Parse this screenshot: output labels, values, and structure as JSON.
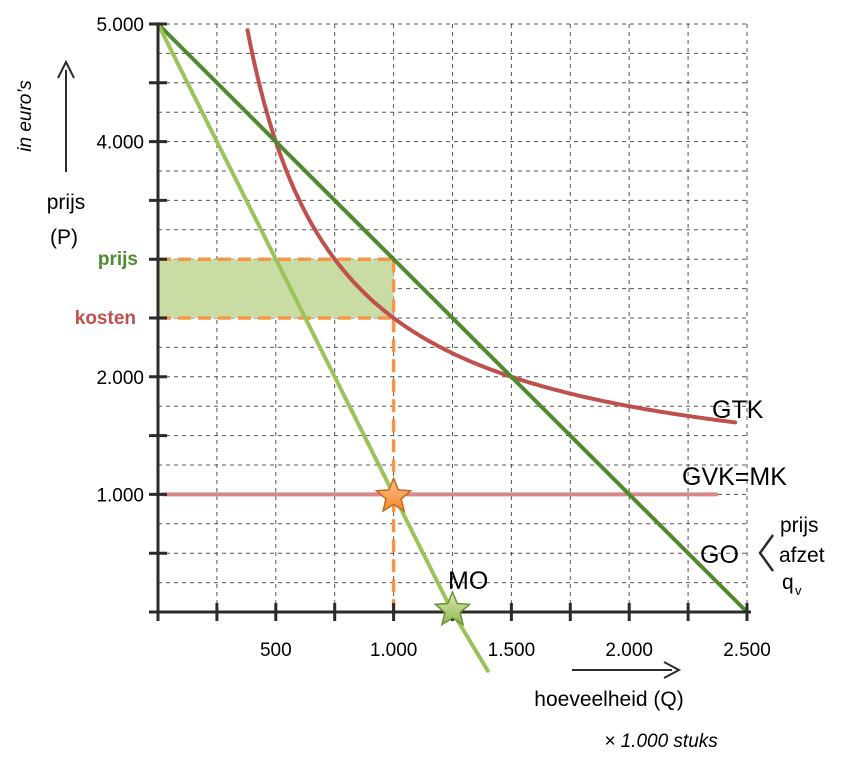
{
  "chart_data": {
    "type": "line",
    "x_ticks": [
      {
        "value": 500,
        "label": "500"
      },
      {
        "value": 1000,
        "label": "1.000"
      },
      {
        "value": 1500,
        "label": "1.500"
      },
      {
        "value": 2000,
        "label": "2.000"
      },
      {
        "value": 2500,
        "label": "2.500"
      }
    ],
    "y_ticks": [
      {
        "value": 1000,
        "label": "1.000"
      },
      {
        "value": 2000,
        "label": "2.000"
      },
      {
        "value": 4000,
        "label": "4.000"
      },
      {
        "value": 5000,
        "label": "5.000"
      }
    ],
    "xlim": [
      0,
      2500
    ],
    "ylim": [
      0,
      5000
    ],
    "grid": true,
    "xlabel": "hoeveelheid (Q)",
    "xunit": "× 1.000 stuks",
    "ylabel_line1": "prijs",
    "ylabel_line2": "(P)",
    "yunit": "in euro’s",
    "series": [
      {
        "name": "GTK",
        "color": "#c0504d",
        "x": [
          380,
          500,
          600,
          700,
          800,
          900,
          1000,
          1200,
          1500,
          2000,
          2450
        ],
        "y": [
          5000,
          4000,
          3333,
          2857,
          2667,
          2556,
          2500,
          2286,
          2000,
          1750,
          1600
        ]
      },
      {
        "name": "GVK=MK",
        "color": "#d9888a",
        "x": [
          20,
          2370
        ],
        "y": [
          1000,
          1000
        ]
      },
      {
        "name": "GO",
        "color": "#4f8a2f",
        "x": [
          0,
          2500
        ],
        "y": [
          5000,
          0
        ]
      },
      {
        "name": "MO",
        "color": "#9bc35a",
        "x": [
          0,
          1250,
          1400
        ],
        "y": [
          5000,
          0,
          -500
        ]
      }
    ],
    "go_brace_labels": [
      "prijs",
      "afzet",
      "q"
    ],
    "go_brace_sub": "v",
    "price_mark": {
      "label": "prijs",
      "value": 3000,
      "color": "#4f8a2f"
    },
    "cost_mark": {
      "label": "kosten",
      "value": 2500,
      "color": "#c0504d"
    },
    "guide_color": "#f79646",
    "profit_fill": "#c8dca4",
    "optimum": {
      "x": 1000,
      "y": 1000,
      "color": "#f79646"
    },
    "mo_zero": {
      "x": 1250,
      "y": 0,
      "color": "#9bc35a"
    }
  }
}
